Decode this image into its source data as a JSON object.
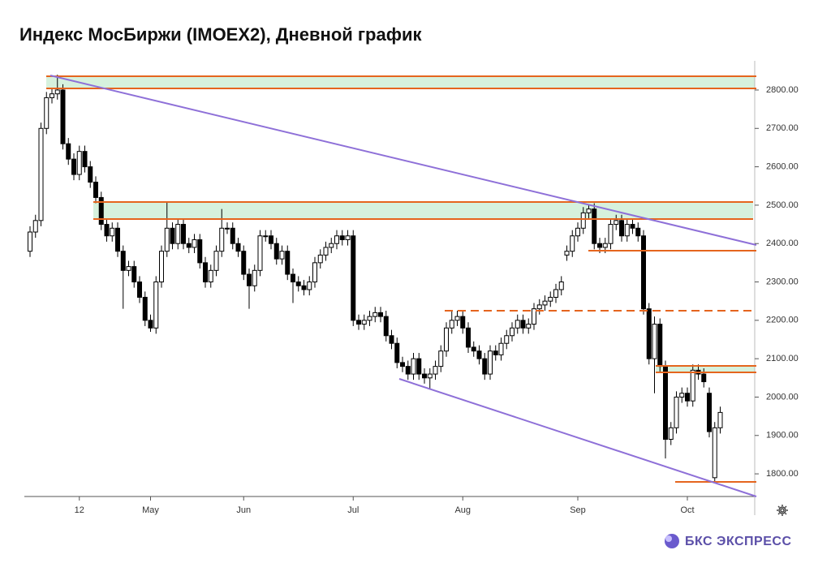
{
  "chart_data": {
    "type": "candlestick",
    "title": "Индекс МосБиржи (IMOEX2), Дневной график",
    "brand": "БКС ЭКСПРЕСС",
    "up_color": "#ffffff",
    "down_color": "#000000",
    "categories": [
      null,
      null,
      null,
      null,
      null,
      null,
      null,
      null,
      null,
      "12",
      null,
      null,
      null,
      null,
      null,
      null,
      null,
      null,
      null,
      null,
      null,
      null,
      "May",
      null,
      null,
      null,
      null,
      null,
      null,
      null,
      null,
      null,
      null,
      null,
      null,
      null,
      null,
      null,
      null,
      "Jun",
      null,
      null,
      null,
      null,
      null,
      null,
      null,
      null,
      null,
      null,
      null,
      null,
      null,
      null,
      null,
      null,
      null,
      null,
      null,
      "Jul",
      null,
      null,
      null,
      null,
      null,
      null,
      null,
      null,
      null,
      null,
      null,
      null,
      null,
      null,
      null,
      null,
      null,
      null,
      null,
      "Aug",
      null,
      null,
      null,
      null,
      null,
      null,
      null,
      null,
      null,
      null,
      null,
      null,
      null,
      null,
      null,
      null,
      null,
      null,
      null,
      null,
      "Sep",
      null,
      null,
      null,
      null,
      null,
      null,
      null,
      null,
      null,
      null,
      null,
      null,
      null,
      null,
      null,
      null,
      null,
      null,
      null,
      "Oct",
      null,
      null,
      null,
      null,
      null,
      null
    ],
    "open": [
      2380,
      2430,
      2460,
      2700,
      2780,
      2790,
      2800,
      2660,
      2620,
      2580,
      2640,
      2600,
      2560,
      2520,
      2450,
      2420,
      2440,
      2380,
      2330,
      2340,
      2300,
      2260,
      2200,
      2180,
      2300,
      2380,
      2440,
      2400,
      2450,
      2400,
      2390,
      2410,
      2350,
      2300,
      2330,
      2380,
      2440,
      2440,
      2400,
      2380,
      2320,
      2290,
      2330,
      2420,
      2420,
      2400,
      2360,
      2380,
      2320,
      2300,
      2290,
      2280,
      2300,
      2350,
      2370,
      2390,
      2400,
      2420,
      2410,
      2420,
      2200,
      2190,
      2200,
      2210,
      2220,
      2210,
      2160,
      2140,
      2090,
      2080,
      2060,
      2100,
      2060,
      2050,
      2060,
      2080,
      2120,
      2180,
      2200,
      2210,
      2180,
      2130,
      2120,
      2100,
      2060,
      2120,
      2110,
      2140,
      2160,
      2180,
      2200,
      2180,
      2190,
      2230,
      2240,
      2250,
      2260,
      2280,
      2370,
      2380,
      2420,
      2440,
      2480,
      2490,
      2400,
      2390,
      2400,
      2450,
      2460,
      2420,
      2450,
      2440,
      2420,
      2230,
      2100,
      2190,
      2080,
      1890,
      1920,
      2000,
      2010,
      1990,
      2070,
      2060,
      2010,
      1790,
      1920
    ],
    "high": [
      2445,
      2475,
      2715,
      2795,
      2805,
      2840,
      2815,
      2675,
      2635,
      2655,
      2655,
      2615,
      2575,
      2535,
      2465,
      2455,
      2455,
      2395,
      2355,
      2355,
      2315,
      2275,
      2215,
      2315,
      2395,
      2510,
      2455,
      2465,
      2465,
      2415,
      2425,
      2425,
      2365,
      2345,
      2395,
      2490,
      2455,
      2455,
      2415,
      2395,
      2335,
      2345,
      2435,
      2435,
      2435,
      2415,
      2395,
      2395,
      2335,
      2315,
      2305,
      2315,
      2365,
      2385,
      2405,
      2415,
      2435,
      2435,
      2435,
      2435,
      2215,
      2215,
      2225,
      2235,
      2235,
      2225,
      2175,
      2155,
      2105,
      2095,
      2115,
      2115,
      2075,
      2075,
      2095,
      2135,
      2195,
      2225,
      2225,
      2225,
      2195,
      2145,
      2135,
      2115,
      2135,
      2135,
      2155,
      2175,
      2195,
      2215,
      2215,
      2205,
      2245,
      2255,
      2265,
      2275,
      2295,
      2315,
      2395,
      2435,
      2455,
      2495,
      2500,
      2505,
      2415,
      2415,
      2465,
      2475,
      2475,
      2465,
      2465,
      2455,
      2435,
      2245,
      2210,
      2205,
      2095,
      1935,
      2015,
      2025,
      2025,
      2085,
      2085,
      2075,
      2025,
      1935,
      1975
    ],
    "low": [
      2365,
      2415,
      2445,
      2685,
      2765,
      2775,
      2645,
      2605,
      2565,
      2565,
      2585,
      2545,
      2505,
      2435,
      2405,
      2405,
      2365,
      2230,
      2315,
      2285,
      2245,
      2185,
      2170,
      2165,
      2285,
      2365,
      2385,
      2385,
      2385,
      2375,
      2375,
      2335,
      2285,
      2285,
      2315,
      2365,
      2425,
      2385,
      2365,
      2305,
      2230,
      2275,
      2315,
      2405,
      2385,
      2345,
      2345,
      2305,
      2245,
      2275,
      2265,
      2265,
      2285,
      2335,
      2355,
      2375,
      2385,
      2395,
      2395,
      2185,
      2175,
      2175,
      2185,
      2195,
      2195,
      2145,
      2125,
      2075,
      2065,
      2045,
      2045,
      2045,
      2035,
      2020,
      2045,
      2065,
      2105,
      2165,
      2185,
      2165,
      2115,
      2105,
      2085,
      2045,
      2045,
      2095,
      2095,
      2125,
      2145,
      2165,
      2165,
      2165,
      2175,
      2215,
      2225,
      2235,
      2245,
      2265,
      2355,
      2365,
      2405,
      2425,
      2465,
      2385,
      2375,
      2375,
      2385,
      2435,
      2405,
      2405,
      2425,
      2405,
      2215,
      2085,
      2010,
      2065,
      1840,
      1875,
      1905,
      1985,
      1975,
      1975,
      2045,
      2025,
      1895,
      1775,
      1905
    ],
    "close": [
      2430,
      2460,
      2700,
      2780,
      2790,
      2800,
      2660,
      2620,
      2580,
      2640,
      2600,
      2560,
      2520,
      2450,
      2420,
      2440,
      2380,
      2330,
      2340,
      2300,
      2260,
      2200,
      2180,
      2300,
      2380,
      2440,
      2400,
      2450,
      2400,
      2390,
      2410,
      2350,
      2300,
      2330,
      2380,
      2440,
      2440,
      2400,
      2380,
      2320,
      2290,
      2330,
      2420,
      2420,
      2400,
      2360,
      2380,
      2320,
      2300,
      2290,
      2280,
      2300,
      2350,
      2370,
      2390,
      2400,
      2420,
      2410,
      2420,
      2200,
      2190,
      2200,
      2210,
      2220,
      2210,
      2160,
      2140,
      2090,
      2080,
      2060,
      2100,
      2060,
      2050,
      2060,
      2080,
      2120,
      2180,
      2200,
      2210,
      2180,
      2130,
      2120,
      2100,
      2060,
      2120,
      2110,
      2140,
      2160,
      2180,
      2200,
      2180,
      2190,
      2230,
      2240,
      2250,
      2260,
      2280,
      2300,
      2380,
      2420,
      2440,
      2480,
      2490,
      2400,
      2390,
      2400,
      2450,
      2460,
      2420,
      2450,
      2440,
      2420,
      2230,
      2100,
      2190,
      2080,
      1890,
      1920,
      2000,
      2010,
      1990,
      2070,
      2060,
      2040,
      1910,
      1920,
      1960
    ],
    "ylim": [
      1741,
      2876
    ],
    "yticks": [
      {
        "value": 1800,
        "label": "1800.00"
      },
      {
        "value": 1900,
        "label": "1900.00"
      },
      {
        "value": 2000,
        "label": "2000.00"
      },
      {
        "value": 2100,
        "label": "2100.00"
      },
      {
        "value": 2200,
        "label": "2200.00"
      },
      {
        "value": 2300,
        "label": "2300.00"
      },
      {
        "value": 2400,
        "label": "2400.00"
      },
      {
        "value": 2500,
        "label": "2500.00"
      },
      {
        "value": 2600,
        "label": "2600.00"
      },
      {
        "value": 2700,
        "label": "2700.00"
      },
      {
        "value": 2800,
        "label": "2800.00"
      }
    ]
  }
}
